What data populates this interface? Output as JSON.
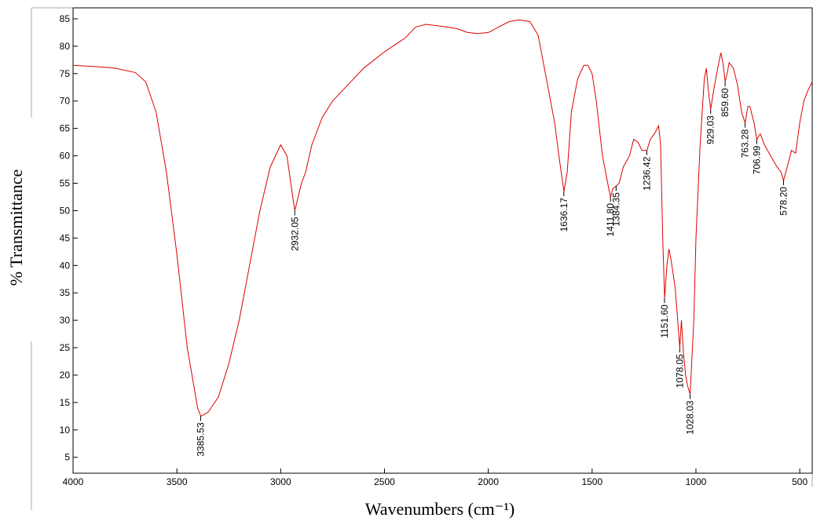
{
  "chart_data": {
    "type": "line",
    "xlabel": "Wavenumbers (cm⁻¹)",
    "ylabel": "% Transmittance",
    "xlim": [
      4000,
      440
    ],
    "ylim": [
      2.1,
      87
    ],
    "xticks": [
      4000,
      3500,
      3000,
      2500,
      2000,
      1500,
      1000,
      500
    ],
    "yticks": [
      5,
      10,
      15,
      20,
      25,
      30,
      35,
      40,
      45,
      50,
      55,
      60,
      65,
      70,
      75,
      80,
      85
    ],
    "x": [
      4000,
      3900,
      3800,
      3700,
      3650,
      3600,
      3550,
      3500,
      3450,
      3400,
      3385,
      3350,
      3300,
      3250,
      3200,
      3150,
      3100,
      3050,
      3000,
      2970,
      2940,
      2932,
      2900,
      2880,
      2850,
      2800,
      2750,
      2700,
      2600,
      2500,
      2400,
      2350,
      2300,
      2200,
      2150,
      2100,
      2050,
      2000,
      1950,
      1900,
      1850,
      1800,
      1760,
      1720,
      1700,
      1680,
      1660,
      1636,
      1620,
      1600,
      1570,
      1540,
      1520,
      1500,
      1480,
      1450,
      1420,
      1411,
      1400,
      1384,
      1370,
      1350,
      1320,
      1300,
      1280,
      1260,
      1236,
      1220,
      1200,
      1180,
      1170,
      1160,
      1151,
      1140,
      1130,
      1120,
      1100,
      1090,
      1078,
      1070,
      1060,
      1050,
      1040,
      1028,
      1010,
      1000,
      980,
      960,
      950,
      940,
      929,
      910,
      890,
      880,
      870,
      859,
      850,
      840,
      820,
      800,
      780,
      763,
      750,
      740,
      720,
      707,
      690,
      670,
      640,
      610,
      590,
      578,
      560,
      540,
      520,
      500,
      480,
      460,
      440
    ],
    "series": [
      {
        "color": "#dd0000",
        "values": [
          76.5,
          76.3,
          76,
          75.2,
          73.5,
          68,
          57,
          42,
          25,
          14,
          12.5,
          13.2,
          16,
          22,
          30,
          40,
          50,
          58,
          62,
          60,
          52,
          50,
          55,
          57,
          62,
          67,
          70,
          72,
          76,
          79,
          81.5,
          83.5,
          84,
          83.5,
          83.2,
          82.5,
          82.3,
          82.5,
          83.5,
          84.5,
          84.8,
          84.5,
          82,
          74,
          70,
          66,
          60,
          53.5,
          57,
          68,
          74,
          76.5,
          76.5,
          75,
          70,
          60,
          54,
          52.5,
          54,
          54.5,
          55,
          58,
          60,
          63,
          62.5,
          61,
          61,
          63,
          64,
          65.5,
          62,
          45,
          34,
          40,
          43,
          41,
          36,
          31,
          25,
          30,
          24,
          20,
          18,
          16.5,
          30,
          45,
          62,
          74,
          76,
          72,
          68.5,
          73,
          77,
          78.8,
          77,
          73.5,
          75,
          77,
          76,
          73,
          68,
          66,
          69,
          69,
          66,
          63,
          64,
          62,
          60,
          58,
          57,
          55.5,
          58,
          61,
          60.5,
          66,
          70,
          72,
          73.5
        ]
      }
    ],
    "peaks": [
      {
        "x": 3385.53,
        "y": 12.5,
        "label": "3385.53"
      },
      {
        "x": 2932.05,
        "y": 50,
        "label": "2932.05"
      },
      {
        "x": 1636.17,
        "y": 53.5,
        "label": "1636.17"
      },
      {
        "x": 1411.8,
        "y": 52.5,
        "label": "1411.80"
      },
      {
        "x": 1384.35,
        "y": 54.5,
        "label": "1384.35"
      },
      {
        "x": 1236.42,
        "y": 61,
        "label": "1236.42"
      },
      {
        "x": 1151.6,
        "y": 34,
        "label": "1151.60"
      },
      {
        "x": 1078.05,
        "y": 25,
        "label": "1078.05"
      },
      {
        "x": 1028.03,
        "y": 16.5,
        "label": "1028.03"
      },
      {
        "x": 929.03,
        "y": 68.5,
        "label": "929.03"
      },
      {
        "x": 859.6,
        "y": 73.5,
        "label": "859.60"
      },
      {
        "x": 763.28,
        "y": 66,
        "label": "763.28"
      },
      {
        "x": 706.99,
        "y": 63,
        "label": "706.99"
      },
      {
        "x": 578.2,
        "y": 55.5,
        "label": "578.20"
      }
    ]
  }
}
